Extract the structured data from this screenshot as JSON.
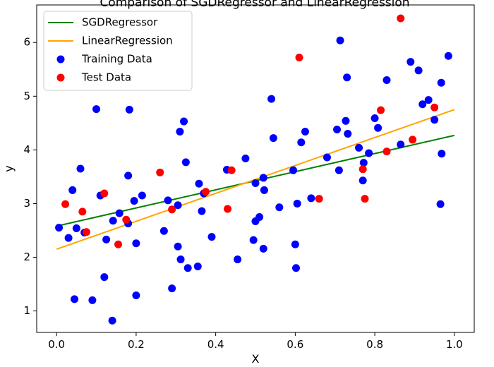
{
  "chart_data": {
    "type": "scatter",
    "title": "Comparison of SGDRegressor and LinearRegression",
    "xlabel": "X",
    "ylabel": "y",
    "xlim": [
      -0.05,
      1.05
    ],
    "ylim": [
      0.6,
      6.7
    ],
    "xticks": [
      0.0,
      0.2,
      0.4,
      0.6,
      0.8,
      1.0
    ],
    "xtick_labels": [
      "0.0",
      "0.2",
      "0.4",
      "0.6",
      "0.8",
      "1.0"
    ],
    "yticks": [
      1,
      2,
      3,
      4,
      5,
      6
    ],
    "ytick_labels": [
      "1",
      "2",
      "3",
      "4",
      "5",
      "6"
    ],
    "grid": false,
    "legend_position": "top-left",
    "lines": [
      {
        "name": "SGDRegressor",
        "color": "#008000",
        "x": [
          0.0,
          1.0
        ],
        "y": [
          2.58,
          4.27
        ]
      },
      {
        "name": "LinearRegression",
        "color": "#ffa500",
        "x": [
          0.0,
          1.0
        ],
        "y": [
          2.15,
          4.75
        ]
      }
    ],
    "series": [
      {
        "name": "Training Data",
        "color": "#0000ff",
        "points": [
          [
            0.006,
            2.55
          ],
          [
            0.03,
            2.36
          ],
          [
            0.04,
            3.25
          ],
          [
            0.045,
            1.22
          ],
          [
            0.05,
            2.54
          ],
          [
            0.06,
            3.65
          ],
          [
            0.07,
            2.46
          ],
          [
            0.09,
            1.2
          ],
          [
            0.1,
            4.76
          ],
          [
            0.11,
            3.15
          ],
          [
            0.12,
            1.63
          ],
          [
            0.125,
            2.33
          ],
          [
            0.14,
            0.82
          ],
          [
            0.142,
            2.68
          ],
          [
            0.158,
            2.82
          ],
          [
            0.18,
            2.63
          ],
          [
            0.18,
            3.52
          ],
          [
            0.183,
            4.75
          ],
          [
            0.195,
            3.05
          ],
          [
            0.2,
            1.29
          ],
          [
            0.2,
            2.26
          ],
          [
            0.215,
            3.15
          ],
          [
            0.27,
            2.49
          ],
          [
            0.28,
            3.06
          ],
          [
            0.29,
            1.42
          ],
          [
            0.305,
            2.2
          ],
          [
            0.305,
            2.97
          ],
          [
            0.31,
            4.34
          ],
          [
            0.312,
            1.96
          ],
          [
            0.32,
            4.53
          ],
          [
            0.325,
            3.77
          ],
          [
            0.33,
            1.8
          ],
          [
            0.355,
            1.83
          ],
          [
            0.358,
            3.37
          ],
          [
            0.365,
            2.86
          ],
          [
            0.37,
            3.19
          ],
          [
            0.39,
            2.38
          ],
          [
            0.428,
            3.63
          ],
          [
            0.455,
            1.96
          ],
          [
            0.475,
            3.84
          ],
          [
            0.495,
            2.32
          ],
          [
            0.5,
            2.67
          ],
          [
            0.5,
            3.38
          ],
          [
            0.51,
            2.75
          ],
          [
            0.52,
            2.16
          ],
          [
            0.52,
            3.48
          ],
          [
            0.522,
            3.25
          ],
          [
            0.54,
            4.95
          ],
          [
            0.545,
            4.22
          ],
          [
            0.56,
            2.93
          ],
          [
            0.595,
            3.62
          ],
          [
            0.6,
            2.24
          ],
          [
            0.602,
            1.8
          ],
          [
            0.605,
            3.0
          ],
          [
            0.615,
            4.14
          ],
          [
            0.625,
            4.34
          ],
          [
            0.64,
            3.1
          ],
          [
            0.68,
            3.86
          ],
          [
            0.705,
            4.38
          ],
          [
            0.71,
            3.62
          ],
          [
            0.713,
            6.04
          ],
          [
            0.727,
            4.54
          ],
          [
            0.73,
            5.35
          ],
          [
            0.732,
            4.3
          ],
          [
            0.76,
            4.04
          ],
          [
            0.77,
            3.43
          ],
          [
            0.772,
            3.76
          ],
          [
            0.785,
            3.94
          ],
          [
            0.8,
            4.59
          ],
          [
            0.808,
            4.41
          ],
          [
            0.83,
            5.3
          ],
          [
            0.865,
            4.1
          ],
          [
            0.89,
            5.64
          ],
          [
            0.91,
            5.48
          ],
          [
            0.92,
            4.85
          ],
          [
            0.935,
            4.93
          ],
          [
            0.95,
            4.56
          ],
          [
            0.965,
            2.99
          ],
          [
            0.967,
            5.25
          ],
          [
            0.968,
            3.93
          ],
          [
            0.985,
            5.75
          ]
        ]
      },
      {
        "name": "Test Data",
        "color": "#ff0000",
        "points": [
          [
            0.022,
            2.99
          ],
          [
            0.065,
            2.85
          ],
          [
            0.075,
            2.47
          ],
          [
            0.12,
            3.19
          ],
          [
            0.155,
            2.24
          ],
          [
            0.175,
            2.7
          ],
          [
            0.26,
            3.58
          ],
          [
            0.29,
            2.89
          ],
          [
            0.375,
            3.22
          ],
          [
            0.43,
            2.9
          ],
          [
            0.44,
            3.62
          ],
          [
            0.61,
            5.72
          ],
          [
            0.66,
            3.09
          ],
          [
            0.77,
            3.64
          ],
          [
            0.775,
            3.09
          ],
          [
            0.815,
            4.74
          ],
          [
            0.83,
            3.97
          ],
          [
            0.865,
            6.45
          ],
          [
            0.895,
            4.19
          ],
          [
            0.95,
            4.79
          ]
        ]
      }
    ]
  }
}
